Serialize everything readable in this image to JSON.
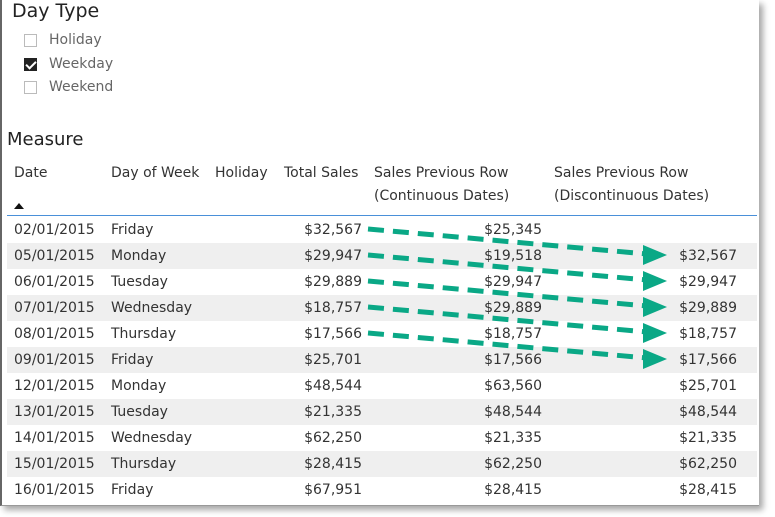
{
  "slicer": {
    "title": "Day Type",
    "options": [
      {
        "label": "Holiday",
        "checked": false
      },
      {
        "label": "Weekday",
        "checked": true
      },
      {
        "label": "Weekend",
        "checked": false
      }
    ]
  },
  "table": {
    "title": "Measure",
    "headers": {
      "date": "Date",
      "dow": "Day of Week",
      "holiday": "Holiday",
      "total": "Total Sales",
      "cont1": "Sales Previous Row",
      "cont2": "(Continuous Dates)",
      "disc1": "Sales Previous Row",
      "disc2": "(Discontinuous Dates)"
    },
    "sort": "ascending",
    "rows": [
      [
        "02/01/2015",
        "Friday",
        "",
        "$32,567",
        "$25,345",
        ""
      ],
      [
        "05/01/2015",
        "Monday",
        "",
        "$29,947",
        "$19,518",
        "$32,567"
      ],
      [
        "06/01/2015",
        "Tuesday",
        "",
        "$29,889",
        "$29,947",
        "$29,947"
      ],
      [
        "07/01/2015",
        "Wednesday",
        "",
        "$18,757",
        "$29,889",
        "$29,889"
      ],
      [
        "08/01/2015",
        "Thursday",
        "",
        "$17,566",
        "$18,757",
        "$18,757"
      ],
      [
        "09/01/2015",
        "Friday",
        "",
        "$25,701",
        "$17,566",
        "$17,566"
      ],
      [
        "12/01/2015",
        "Monday",
        "",
        "$48,544",
        "$63,560",
        "$25,701"
      ],
      [
        "13/01/2015",
        "Tuesday",
        "",
        "$21,335",
        "$48,544",
        "$48,544"
      ],
      [
        "14/01/2015",
        "Wednesday",
        "",
        "$62,250",
        "$21,335",
        "$21,335"
      ],
      [
        "15/01/2015",
        "Thursday",
        "",
        "$28,415",
        "$62,250",
        "$62,250"
      ],
      [
        "16/01/2015",
        "Friday",
        "",
        "$67,951",
        "$28,415",
        "$28,415"
      ]
    ]
  },
  "annotation": {
    "arrow_color": "#0aa886",
    "arrow_count": 5
  }
}
